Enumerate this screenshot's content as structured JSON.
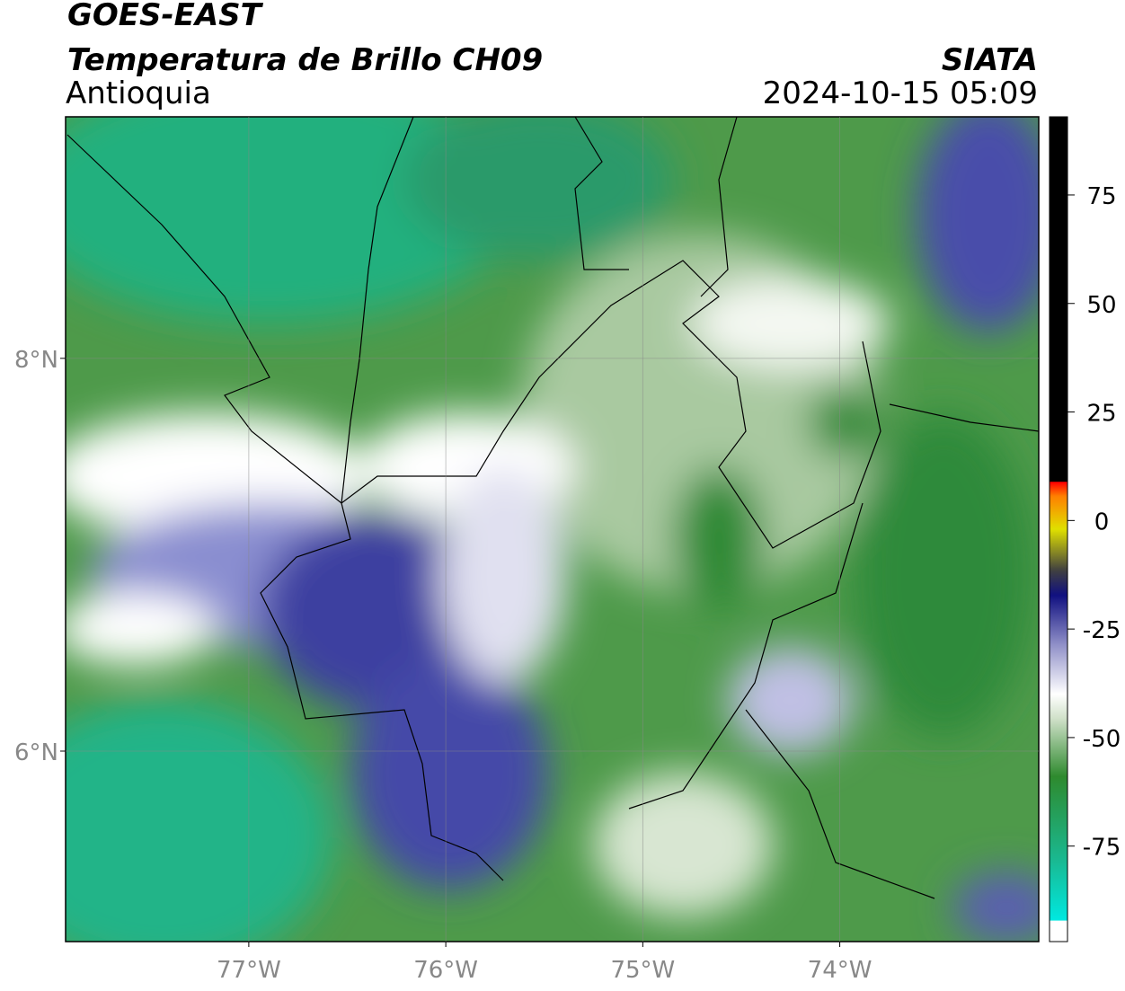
{
  "header": {
    "title": "GOES-EAST",
    "subtitle": "Temperatura de Brillo CH09",
    "region": "Antioquia",
    "source": "SIATA",
    "datetime": "2024-10-15 05:09"
  },
  "map": {
    "xlim": [
      -77.93,
      -72.99
    ],
    "ylim": [
      5.03,
      9.23
    ],
    "xticks": [
      {
        "value": -77,
        "label": "77°W"
      },
      {
        "value": -76,
        "label": "76°W"
      },
      {
        "value": -75,
        "label": "75°W"
      },
      {
        "value": -74,
        "label": "74°W"
      }
    ],
    "yticks": [
      {
        "value": 8,
        "label": "8°N"
      },
      {
        "value": 6,
        "label": "6°N"
      }
    ],
    "grid": true
  },
  "colorbar": {
    "ylim": [
      -97,
      93
    ],
    "yticks": [
      75,
      50,
      25,
      0,
      -25,
      -50,
      -75
    ]
  }
}
